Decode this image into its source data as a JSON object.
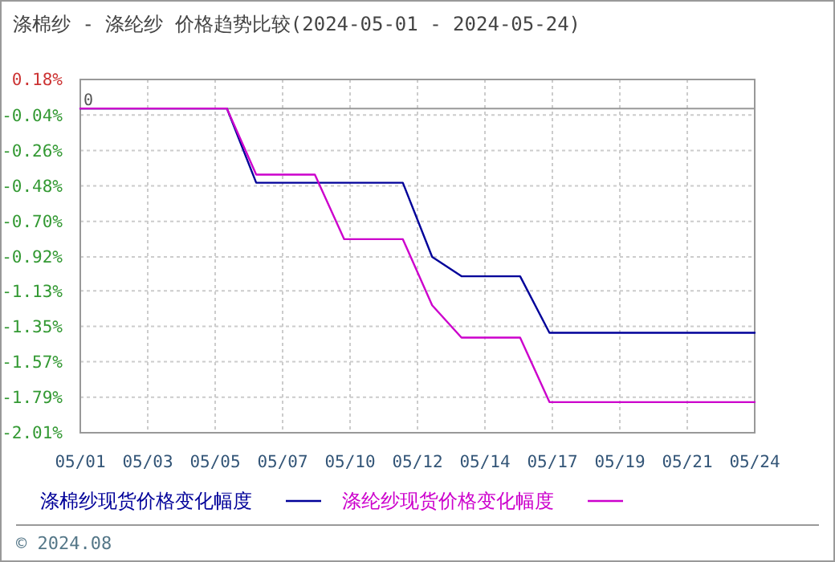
{
  "chart_data": {
    "type": "line",
    "title": "涤棉纱 - 涤纶纱 价格趋势比较(2024-05-01 - 2024-05-24)",
    "xlim": [
      "2024-05-01",
      "2024-05-24"
    ],
    "xticks": [
      {
        "value": "2024-05-01",
        "label": "05/01"
      },
      {
        "value": "2024-05-03T07:12",
        "label": "05/03"
      },
      {
        "value": "2024-05-05T14:24",
        "label": "05/05"
      },
      {
        "value": "2024-05-07T21:36",
        "label": "05/07"
      },
      {
        "value": "2024-05-10T04:48",
        "label": "05/10"
      },
      {
        "value": "2024-05-12T12:00",
        "label": "05/12"
      },
      {
        "value": "2024-05-14T19:12",
        "label": "05/14"
      },
      {
        "value": "2024-05-17T02:24",
        "label": "05/17"
      },
      {
        "value": "2024-05-19T09:36",
        "label": "05/19"
      },
      {
        "value": "2024-05-21T16:48",
        "label": "05/21"
      },
      {
        "value": "2024-05-24",
        "label": "05/24"
      }
    ],
    "ylim": [
      -2.01,
      0.18
    ],
    "yticks": [
      {
        "value": 0.18,
        "label": "0.18%"
      },
      {
        "value": -0.04,
        "label": "-0.04%"
      },
      {
        "value": -0.26,
        "label": "-0.26%"
      },
      {
        "value": -0.48,
        "label": "-0.48%"
      },
      {
        "value": -0.7,
        "label": "-0.70%"
      },
      {
        "value": -0.92,
        "label": "-0.92%"
      },
      {
        "value": -1.13,
        "label": "-1.13%"
      },
      {
        "value": -1.35,
        "label": "-1.35%"
      },
      {
        "value": -1.57,
        "label": "-1.57%"
      },
      {
        "value": -1.79,
        "label": "-1.79%"
      },
      {
        "value": -2.01,
        "label": "-2.01%"
      }
    ],
    "grid": true,
    "legend": "bottom",
    "marker": "none",
    "line_style": "solid",
    "ref_lines": [
      {
        "axis": "y",
        "value": 0,
        "label": "0",
        "color": "#999999"
      }
    ],
    "annotations": [
      "© 2024.08"
    ],
    "series": [
      {
        "name": "涤棉纱现货价格变化幅度",
        "color": "#000099",
        "x": [
          "2024-05-01",
          "2024-05-06",
          "2024-05-07",
          "2024-05-12",
          "2024-05-13",
          "2024-05-14",
          "2024-05-16",
          "2024-05-17",
          "2024-05-24"
        ],
        "values": [
          0,
          0,
          -0.46,
          -0.46,
          -0.92,
          -1.04,
          -1.04,
          -1.39,
          -1.39
        ]
      },
      {
        "name": "涤纶纱现货价格变化幅度",
        "color": "#cc00cc",
        "x": [
          "2024-05-01",
          "2024-05-06",
          "2024-05-07",
          "2024-05-09",
          "2024-05-10",
          "2024-05-12",
          "2024-05-13",
          "2024-05-14",
          "2024-05-16",
          "2024-05-17",
          "2024-05-24"
        ],
        "values": [
          0,
          0,
          -0.41,
          -0.41,
          -0.81,
          -0.81,
          -1.22,
          -1.42,
          -1.42,
          -1.82,
          -1.82
        ]
      }
    ]
  }
}
